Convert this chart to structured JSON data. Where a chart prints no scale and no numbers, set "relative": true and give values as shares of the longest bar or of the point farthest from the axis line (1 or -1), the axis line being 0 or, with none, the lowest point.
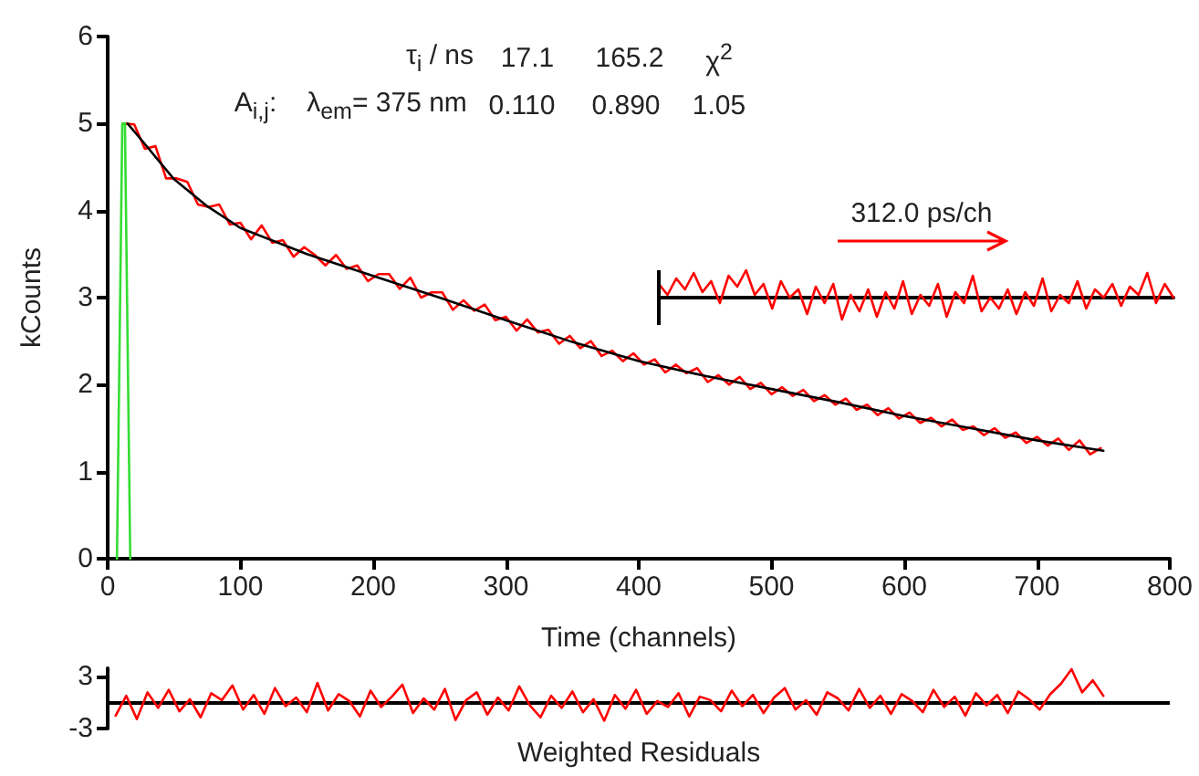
{
  "chart_data": [
    {
      "type": "line",
      "xlabel": "Time (channels)",
      "ylabel": "kCounts",
      "xlim": [
        0,
        800
      ],
      "xticks": [
        0,
        100,
        200,
        300,
        400,
        500,
        600,
        700,
        800
      ],
      "ylim": [
        0,
        6
      ],
      "yticks": [
        0,
        1,
        2,
        3,
        4,
        5,
        6
      ],
      "grid": false,
      "marker": "none",
      "line_style": "solid",
      "annotations": [
        "τ$_{i}$ / ns",
        "17.1",
        "165.2",
        "χ$^{2}$",
        "A$_{i,j}$:",
        "λ$_{em}$= 375 nm",
        "0.110",
        "0.890",
        "1.05",
        "312.0 ps/ch"
      ],
      "series": [
        {
          "color": "#ff0000",
          "x": [
            12,
            20,
            28,
            36,
            44,
            52,
            60,
            68,
            76,
            84,
            92,
            100,
            108,
            116,
            124,
            132,
            140,
            148,
            156,
            164,
            172,
            180,
            188,
            196,
            204,
            212,
            220,
            228,
            236,
            244,
            252,
            260,
            268,
            276,
            284,
            292,
            300,
            308,
            316,
            324,
            332,
            340,
            348,
            356,
            364,
            372,
            380,
            388,
            396,
            404,
            412,
            420,
            428,
            436,
            444,
            452,
            460,
            468,
            476,
            484,
            492,
            500,
            508,
            516,
            524,
            532,
            540,
            548,
            556,
            564,
            572,
            580,
            588,
            596,
            604,
            612,
            620,
            628,
            636,
            644,
            652,
            660,
            668,
            676,
            684,
            692,
            700,
            708,
            716,
            724,
            732,
            740,
            748
          ],
          "values": [
            5.0,
            4.99,
            4.71,
            4.74,
            4.37,
            4.37,
            4.33,
            4.07,
            4.04,
            4.07,
            3.84,
            3.86,
            3.67,
            3.83,
            3.63,
            3.66,
            3.47,
            3.58,
            3.49,
            3.37,
            3.49,
            3.33,
            3.37,
            3.19,
            3.27,
            3.27,
            3.1,
            3.23,
            3.0,
            3.06,
            3.06,
            2.86,
            2.97,
            2.85,
            2.92,
            2.74,
            2.78,
            2.62,
            2.75,
            2.6,
            2.63,
            2.47,
            2.56,
            2.42,
            2.5,
            2.33,
            2.39,
            2.27,
            2.36,
            2.23,
            2.29,
            2.14,
            2.23,
            2.13,
            2.19,
            2.03,
            2.11,
            2.0,
            2.09,
            1.95,
            2.02,
            1.89,
            1.97,
            1.87,
            1.94,
            1.81,
            1.88,
            1.77,
            1.84,
            1.71,
            1.77,
            1.65,
            1.73,
            1.61,
            1.68,
            1.56,
            1.62,
            1.52,
            1.6,
            1.48,
            1.52,
            1.42,
            1.5,
            1.39,
            1.45,
            1.33,
            1.4,
            1.3,
            1.38,
            1.25,
            1.36,
            1.2,
            1.27
          ]
        },
        {
          "color": "#000000",
          "x": [
            15,
            25,
            50,
            75,
            100,
            150,
            200,
            250,
            300,
            350,
            400,
            450,
            500,
            550,
            600,
            650,
            700,
            750
          ],
          "values": [
            5.0,
            4.82,
            4.36,
            4.05,
            3.8,
            3.5,
            3.25,
            3.0,
            2.74,
            2.49,
            2.27,
            2.1,
            1.95,
            1.8,
            1.64,
            1.5,
            1.36,
            1.24
          ]
        },
        {
          "color": "#33dd33",
          "x": [
            7,
            11,
            13,
            17
          ],
          "values": [
            0,
            5.0,
            5.0,
            0
          ]
        }
      ]
    },
    {
      "type": "line",
      "relative": true,
      "tick_labels": false,
      "grid": false,
      "marker": "none",
      "line_style": "solid",
      "categories": [
        null,
        null,
        null,
        null,
        null,
        null,
        null,
        null,
        null,
        null,
        null,
        null,
        null,
        null,
        null,
        null,
        null,
        null,
        null,
        null,
        null,
        null,
        null,
        null,
        null,
        null,
        null,
        null,
        null,
        null,
        null,
        null,
        null,
        null,
        null,
        null,
        null,
        null,
        null,
        null,
        null,
        null,
        null,
        null,
        null,
        null,
        null,
        null,
        null,
        null,
        null,
        null,
        null,
        null,
        null,
        null,
        null,
        null,
        null,
        null
      ],
      "series": [
        {
          "color": "#ff0000",
          "values": [
            0.5,
            0.1,
            0.7,
            0.3,
            0.9,
            0.2,
            0.6,
            -0.2,
            0.8,
            0.4,
            1.0,
            0.1,
            0.5,
            -0.4,
            0.6,
            0.0,
            0.3,
            -0.6,
            0.4,
            -0.2,
            0.5,
            -0.8,
            0.1,
            -0.5,
            0.3,
            -0.7,
            0.2,
            -0.4,
            0.6,
            -0.6,
            0.1,
            -0.3,
            0.5,
            -0.7,
            0.2,
            -0.2,
            0.8,
            -0.5,
            0.0,
            -0.4,
            0.3,
            -0.6,
            0.2,
            -0.3,
            0.7,
            -0.5,
            0.1,
            -0.2,
            0.6,
            -0.4,
            0.3,
            0.0,
            0.5,
            -0.3,
            0.4,
            0.1,
            0.9,
            -0.2,
            0.5,
            0.0
          ]
        }
      ]
    },
    {
      "type": "line",
      "xlabel": "Weighted Residuals",
      "xlim": [
        0,
        800
      ],
      "ylim": [
        -3,
        4
      ],
      "yticks": [
        3,
        -3
      ],
      "tick_labels": "y",
      "grid": false,
      "marker": "none",
      "line_style": "solid",
      "ref_lines": [
        {
          "axis": "y",
          "value": 0,
          "color": "#000000"
        }
      ],
      "series": [
        {
          "color": "#ff0000",
          "x": [
            6,
            14,
            22,
            30,
            38,
            46,
            54,
            62,
            70,
            78,
            86,
            94,
            102,
            110,
            118,
            126,
            134,
            142,
            150,
            158,
            166,
            174,
            182,
            190,
            198,
            206,
            214,
            222,
            230,
            238,
            246,
            254,
            262,
            270,
            278,
            286,
            294,
            302,
            310,
            318,
            326,
            334,
            342,
            350,
            358,
            366,
            374,
            382,
            390,
            398,
            406,
            414,
            422,
            430,
            438,
            446,
            454,
            462,
            470,
            478,
            486,
            494,
            502,
            510,
            518,
            526,
            534,
            542,
            550,
            558,
            566,
            574,
            582,
            590,
            598,
            606,
            614,
            622,
            630,
            638,
            646,
            654,
            662,
            670,
            678,
            686,
            694,
            702,
            710,
            718,
            726,
            734,
            742,
            750
          ],
          "values": [
            -1.5,
            0.8,
            -1.9,
            1.2,
            -0.6,
            1.5,
            -1.0,
            0.4,
            -1.7,
            1.1,
            0.3,
            2.0,
            -0.8,
            0.9,
            -1.3,
            1.7,
            -0.4,
            0.6,
            -1.1,
            2.3,
            -0.9,
            1.0,
            0.2,
            -1.6,
            1.4,
            -0.5,
            0.7,
            2.1,
            -1.2,
            0.5,
            -0.8,
            1.6,
            -2.0,
            0.3,
            1.2,
            -1.4,
            0.6,
            -0.9,
            1.9,
            -0.3,
            -1.7,
            0.8,
            -0.6,
            1.3,
            -1.1,
            0.4,
            -2.1,
            0.9,
            -0.7,
            1.5,
            -1.3,
            0.2,
            -0.5,
            1.1,
            -1.6,
            0.7,
            0.3,
            -1.0,
            1.4,
            -0.4,
            0.9,
            -1.2,
            0.6,
            1.7,
            -0.8,
            0.3,
            -1.4,
            1.2,
            0.5,
            -0.9,
            1.6,
            -0.6,
            0.8,
            -1.3,
            1.0,
            0.2,
            -1.1,
            1.5,
            -0.5,
            0.7,
            -1.5,
            1.1,
            -0.3,
            0.9,
            -1.2,
            1.3,
            0.4,
            -0.8,
            1.0,
            2.2,
            3.9,
            1.2,
            2.6,
            0.8
          ]
        }
      ]
    }
  ]
}
